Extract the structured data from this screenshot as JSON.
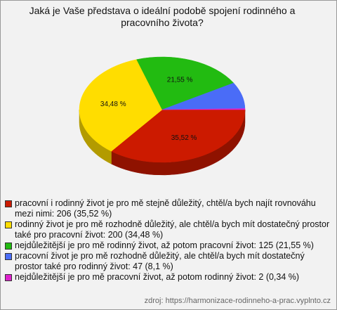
{
  "chart_data": {
    "type": "pie",
    "title": "Jaká je Vaše představa o ideální podobě spojení rodinného a pracovního života?",
    "categories": [
      "pracovní i rodinný život je pro mě stejně důležitý, chtěl/a bych najít rovnováhu mezi nimi: 206 (35,52 %)",
      "rodinný život je pro mě rozhodně důležitý, ale chtěl/a bych mít dostatečný prostor také pro pracovní život: 200 (34,48 %)",
      "nejdůležitější je pro mě rodinný život, až potom pracovní život: 125 (21,55 %)",
      "pracovní život je pro mě rozhodně důležitý, ale chtěl/a bych mít dostatečný prostor také pro rodinný život: 47 (8,1 %)",
      "nejdůležitější je pro mě pracovní život, až potom rodinný život: 2 (0,34 %)"
    ],
    "values": [
      35.52,
      34.48,
      21.55,
      8.1,
      0.34
    ],
    "value_labels": [
      "35,52 %",
      "34,48 %",
      "21,55 %",
      null,
      null
    ],
    "colors": [
      "#cc1a00",
      "#ffdd00",
      "#22bb11",
      "#4a6cf7",
      "#dd22cc"
    ],
    "source": "zdroj: https://harmonizace-rodinneho-a-prac.vyplnto.cz"
  }
}
